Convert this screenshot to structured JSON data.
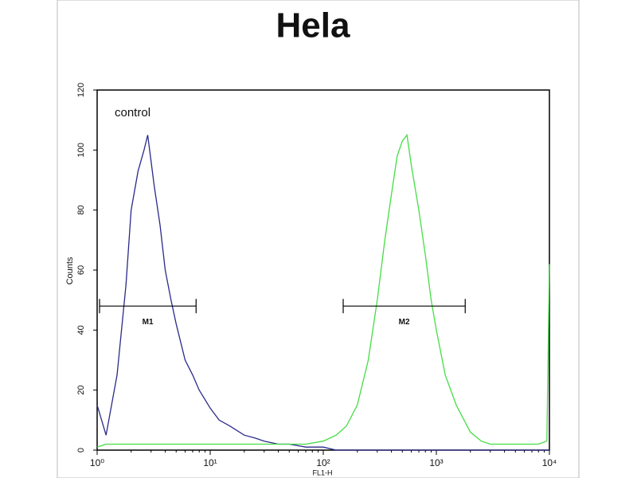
{
  "chart_data": {
    "type": "histogram-line",
    "title": "Hela",
    "y_label": "Counts",
    "x_label": "FL1-H",
    "x_scale": "log",
    "x": [
      1,
      1.2,
      1.5,
      1.8,
      2,
      2.3,
      2.6,
      2.8,
      3.2,
      3.6,
      4,
      4.5,
      5,
      6,
      7,
      8,
      10,
      12,
      15,
      20,
      25,
      30,
      40,
      50,
      70,
      100,
      130,
      160,
      200,
      250,
      300,
      350,
      400,
      450,
      500,
      550,
      600,
      700,
      800,
      900,
      1000,
      1200,
      1500,
      2000,
      2500,
      3000,
      5000,
      8000,
      9500,
      10000
    ],
    "series": [
      {
        "name": "control",
        "color": "#2a2a8a",
        "values": [
          15,
          5,
          25,
          55,
          80,
          93,
          100,
          105,
          88,
          75,
          60,
          50,
          42,
          30,
          25,
          20,
          14,
          10,
          8,
          5,
          4,
          3,
          2,
          2,
          1,
          1,
          0,
          0,
          0,
          0,
          0,
          0,
          0,
          0,
          0,
          0,
          0,
          0,
          0,
          0,
          0,
          0,
          0,
          0,
          0,
          0,
          0,
          0,
          0,
          0
        ]
      },
      {
        "color": "#44dd44",
        "values": [
          1,
          2,
          2,
          2,
          2,
          2,
          2,
          2,
          2,
          2,
          2,
          2,
          2,
          2,
          2,
          2,
          2,
          2,
          2,
          2,
          2,
          2,
          2,
          2,
          2,
          3,
          5,
          8,
          15,
          30,
          50,
          70,
          85,
          98,
          103,
          105,
          95,
          80,
          65,
          50,
          40,
          25,
          15,
          6,
          3,
          2,
          2,
          2,
          3,
          62
        ]
      }
    ],
    "markers": [
      {
        "label": "M1",
        "range": [
          1.05,
          7.5
        ],
        "y": 48
      },
      {
        "label": "M2",
        "range": [
          150,
          1800
        ],
        "y": 48
      }
    ],
    "xlim": [
      1,
      10000
    ],
    "xticks": [
      {
        "value": 1,
        "label": "10⁰"
      },
      {
        "value": 10,
        "label": "10¹"
      },
      {
        "value": 100,
        "label": "10²"
      },
      {
        "value": 1000,
        "label": "10³"
      },
      {
        "value": 10000,
        "label": "10⁴"
      }
    ],
    "ylim": [
      0,
      120
    ],
    "yticks": [
      0,
      20,
      40,
      60,
      80,
      100,
      120
    ]
  }
}
